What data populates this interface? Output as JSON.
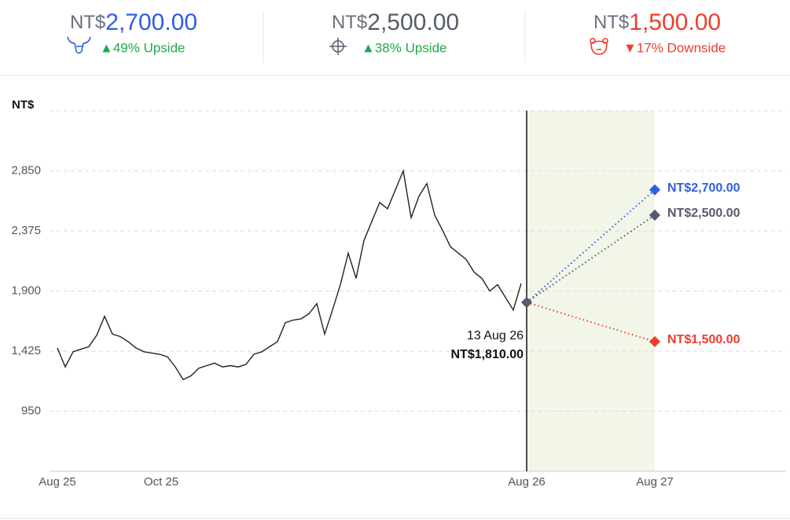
{
  "header": [
    {
      "currency": "NT$",
      "price": "2,700.00",
      "change": "▲49% Upside",
      "color": "#2f5ee0",
      "change_color": "#1faa4c"
    },
    {
      "currency": "NT$",
      "price": "2,500.00",
      "change": "▲38% Upside",
      "color": "#555a6e",
      "change_color": "#1faa4c"
    },
    {
      "currency": "NT$",
      "price": "1,500.00",
      "change": "▼17% Downside",
      "color": "#f03c2e",
      "change_color": "#f03c2e"
    }
  ],
  "chart_data": {
    "type": "line",
    "y_label": "NT$",
    "ylim": [
      475,
      3325
    ],
    "yticks": [
      {
        "value": 950,
        "label": "950"
      },
      {
        "value": 1425,
        "label": "1,425"
      },
      {
        "value": 1900,
        "label": "1,900"
      },
      {
        "value": 2375,
        "label": "2,375"
      },
      {
        "value": 2850,
        "label": "2,850"
      }
    ],
    "x_labels": [
      "Aug 25",
      "Oct 25",
      "Aug 26",
      "Aug 27"
    ],
    "price_color": "#222222",
    "values": [
      1450,
      1300,
      1420,
      1440,
      1460,
      1550,
      1700,
      1560,
      1540,
      1500,
      1450,
      1420,
      1410,
      1400,
      1380,
      1300,
      1200,
      1230,
      1290,
      1310,
      1330,
      1300,
      1310,
      1300,
      1320,
      1400,
      1420,
      1460,
      1500,
      1650,
      1670,
      1680,
      1720,
      1800,
      1560,
      1750,
      1950,
      2200,
      2000,
      2300,
      2450,
      2600,
      2550,
      2700,
      2850,
      2480,
      2650,
      2750,
      2500,
      2380,
      2250,
      2200,
      2150,
      2050,
      2000,
      1900,
      1950,
      1850,
      1750,
      1960
    ],
    "current": {
      "date": "13 Aug 26",
      "value": 1810,
      "value_label": "NT$1,810.00",
      "color": "#555a6e"
    },
    "targets": [
      {
        "value": 2700,
        "value_label": "NT$2,700.00",
        "color": "#2f5ee0"
      },
      {
        "value": 2500,
        "value_label": "NT$2,500.00",
        "color": "#555a6e"
      },
      {
        "value": 1500,
        "value_label": "NT$1,500.00",
        "color": "#f03c2e"
      }
    ],
    "grid": true
  }
}
